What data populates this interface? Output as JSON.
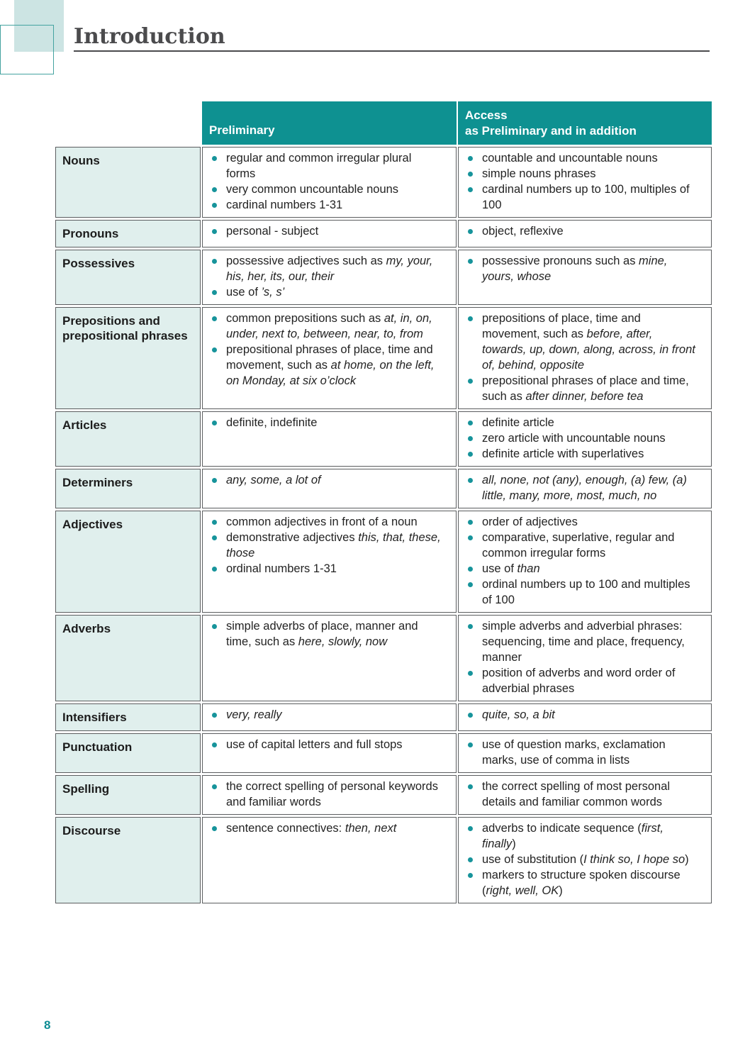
{
  "page": {
    "title": "Introduction",
    "page_number": "8"
  },
  "colors": {
    "header_teal": "#0e9191",
    "label_cell_bg": "#e0efed",
    "bullet_teal": "#17949b",
    "page_number_teal": "#0f8d94",
    "decor_square_fill": "#cce4e3",
    "decor_square_outline": "#44a3a0",
    "cell_border_gray": "#5b5d5f",
    "heading_gray": "#4b4b4d"
  },
  "icons": {
    "bullet": "bullet-dot"
  },
  "table": {
    "header": {
      "preliminary": "Preliminary",
      "access_line1": "Access",
      "access_line2": "as Preliminary and in addition"
    },
    "rows": [
      {
        "label": "Nouns",
        "preliminary": [
          [
            {
              "t": "regular and common irregular plural forms"
            }
          ],
          [
            {
              "t": "very common uncountable nouns"
            }
          ],
          [
            {
              "t": "cardinal numbers 1-31"
            }
          ]
        ],
        "access": [
          [
            {
              "t": "countable and uncountable nouns"
            }
          ],
          [
            {
              "t": "simple nouns phrases"
            }
          ],
          [
            {
              "t": "cardinal numbers up to 100, multiples of 100"
            }
          ]
        ]
      },
      {
        "label": "Pronouns",
        "preliminary": [
          [
            {
              "t": "personal - subject"
            }
          ]
        ],
        "access": [
          [
            {
              "t": "object, reflexive"
            }
          ]
        ]
      },
      {
        "label": "Possessives",
        "preliminary": [
          [
            {
              "t": "possessive adjectives such as "
            },
            {
              "t": "my, your, his, her, its, our, their",
              "i": true
            }
          ],
          [
            {
              "t": "use of "
            },
            {
              "t": "’s, s’",
              "i": true
            }
          ]
        ],
        "access": [
          [
            {
              "t": "possessive pronouns such as "
            },
            {
              "t": "mine, yours, whose",
              "i": true
            }
          ]
        ]
      },
      {
        "label": "Prepositions and prepositional phrases",
        "preliminary": [
          [
            {
              "t": "common prepositions such as "
            },
            {
              "t": "at, in, on, under, next to, between, near, to, from",
              "i": true
            }
          ],
          [
            {
              "t": "prepositional phrases of place, time and movement, such as "
            },
            {
              "t": "at home, on the left, on Monday, at six o’clock",
              "i": true
            }
          ]
        ],
        "access": [
          [
            {
              "t": "prepositions of place, time and movement, such as "
            },
            {
              "t": "before, after, towards, up, down, along, across, in front of, behind, opposite",
              "i": true
            }
          ],
          [
            {
              "t": "prepositional phrases of place and time, such as "
            },
            {
              "t": "after dinner, before tea",
              "i": true
            }
          ]
        ]
      },
      {
        "label": "Articles",
        "preliminary": [
          [
            {
              "t": "definite, indefinite"
            }
          ]
        ],
        "access": [
          [
            {
              "t": "definite article"
            }
          ],
          [
            {
              "t": "zero article with uncountable nouns"
            }
          ],
          [
            {
              "t": "definite article with superlatives"
            }
          ]
        ]
      },
      {
        "label": "Determiners",
        "preliminary": [
          [
            {
              "t": "any, some, a lot of",
              "i": true
            }
          ]
        ],
        "access": [
          [
            {
              "t": "all, none, not (any), enough, (a) few, (a) little, many, more, most, much, no",
              "i": true
            }
          ]
        ]
      },
      {
        "label": "Adjectives",
        "preliminary": [
          [
            {
              "t": "common adjectives in front of a noun"
            }
          ],
          [
            {
              "t": "demonstrative adjectives "
            },
            {
              "t": "this, that, these, those",
              "i": true
            }
          ],
          [
            {
              "t": "ordinal numbers 1-31"
            }
          ]
        ],
        "access": [
          [
            {
              "t": "order of adjectives"
            }
          ],
          [
            {
              "t": "comparative, superlative, regular and common irregular forms"
            }
          ],
          [
            {
              "t": "use of "
            },
            {
              "t": "than",
              "i": true
            }
          ],
          [
            {
              "t": "ordinal numbers up to 100 and multiples of 100"
            }
          ]
        ]
      },
      {
        "label": "Adverbs",
        "preliminary": [
          [
            {
              "t": "simple adverbs of place, manner and time, such as "
            },
            {
              "t": "here, slowly, now",
              "i": true
            }
          ]
        ],
        "access": [
          [
            {
              "t": "simple adverbs and adverbial phrases: sequencing, time and place, frequency, manner"
            }
          ],
          [
            {
              "t": "position of adverbs and word order of adverbial phrases"
            }
          ]
        ]
      },
      {
        "label": "Intensifiers",
        "preliminary": [
          [
            {
              "t": "very, really",
              "i": true
            }
          ]
        ],
        "access": [
          [
            {
              "t": "quite, so, a bit",
              "i": true
            }
          ]
        ]
      },
      {
        "label": "Punctuation",
        "preliminary": [
          [
            {
              "t": "use of capital letters and full stops"
            }
          ]
        ],
        "access": [
          [
            {
              "t": "use of question marks, exclamation marks, use of comma in lists"
            }
          ]
        ]
      },
      {
        "label": "Spelling",
        "preliminary": [
          [
            {
              "t": "the correct spelling of personal keywords and familiar words"
            }
          ]
        ],
        "access": [
          [
            {
              "t": "the correct spelling of most personal details and familiar common words"
            }
          ]
        ]
      },
      {
        "label": "Discourse",
        "preliminary": [
          [
            {
              "t": "sentence connectives: "
            },
            {
              "t": "then, next",
              "i": true
            }
          ]
        ],
        "access": [
          [
            {
              "t": "adverbs to indicate sequence ("
            },
            {
              "t": "first, finally",
              "i": true
            },
            {
              "t": ")"
            }
          ],
          [
            {
              "t": "use of substitution ("
            },
            {
              "t": "I think so, I hope so",
              "i": true
            },
            {
              "t": ")"
            }
          ],
          [
            {
              "t": "markers to structure spoken discourse ("
            },
            {
              "t": "right, well, OK",
              "i": true
            },
            {
              "t": ")"
            }
          ]
        ]
      }
    ]
  }
}
